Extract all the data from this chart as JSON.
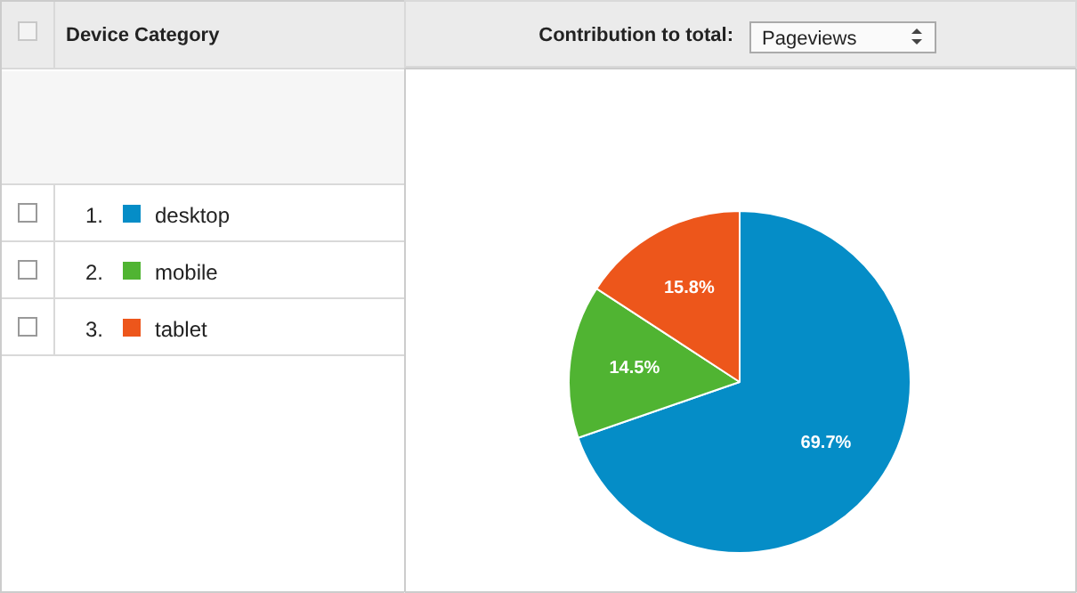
{
  "chart_data": {
    "type": "pie",
    "legend_title": "Device Category",
    "annotations": [
      "Contribution to total:",
      "Pageviews",
      "1.",
      "2.",
      "3."
    ],
    "categories": [
      "desktop",
      "mobile",
      "tablet"
    ],
    "values": [
      69.7,
      14.5,
      15.8
    ],
    "colors": [
      "#058dc7",
      "#50b432",
      "#ed561b"
    ],
    "value_labels": [
      "69.7%",
      "14.5%",
      "15.8%"
    ],
    "legend": "left"
  }
}
